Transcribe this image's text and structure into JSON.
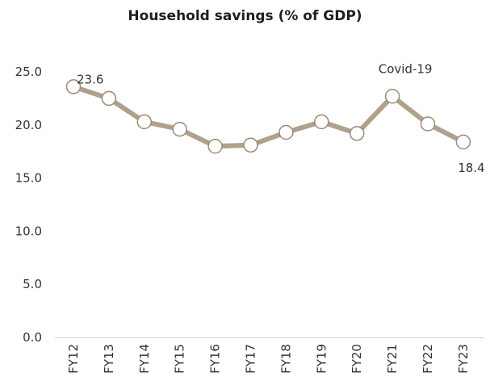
{
  "chart_data": {
    "type": "line",
    "title": "Household savings (% of GDP)",
    "xlabel": "",
    "ylabel": "",
    "categories": [
      "FY12",
      "FY13",
      "FY14",
      "FY15",
      "FY16",
      "FY17",
      "FY18",
      "FY19",
      "FY20",
      "FY21",
      "FY22",
      "FY23"
    ],
    "series": [
      {
        "values": [
          23.6,
          22.5,
          20.3,
          19.6,
          18.0,
          18.1,
          19.3,
          20.3,
          19.2,
          22.7,
          20.1,
          18.4
        ]
      }
    ],
    "ylim": [
      0,
      25
    ],
    "yticks": [
      "0.0",
      "5.0",
      "10.0",
      "15.0",
      "20.0",
      "25.0"
    ],
    "grid": false,
    "legend": "none",
    "annotations": [
      {
        "category": "FY12",
        "text": "23.6"
      },
      {
        "category": "FY21",
        "text": "Covid-19"
      },
      {
        "category": "FY23",
        "text": "18.4"
      }
    ],
    "line_color": "#b0a08c",
    "marker_fill": "#ffffff",
    "marker_edge": "#9a8b78"
  }
}
